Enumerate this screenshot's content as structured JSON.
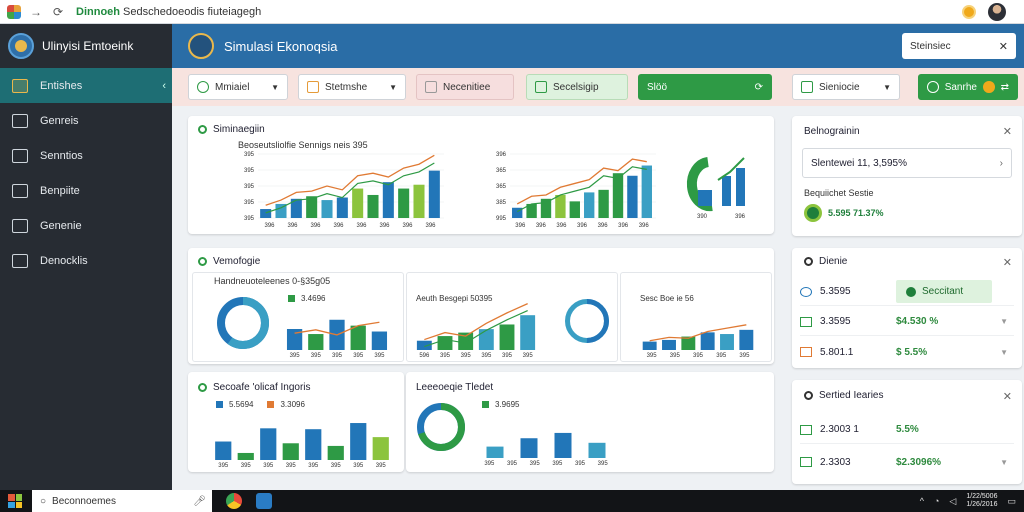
{
  "browser": {
    "url_host": "Dinnoeh",
    "url_rest": " Sedschedoeodis fiuteiagegh",
    "icons": [
      "back-arrow",
      "forward-arrow",
      "reload",
      "extension",
      "profile"
    ]
  },
  "sidebar": {
    "title": "Ulinyisi Emtoeink",
    "items": [
      {
        "label": "Entishes",
        "icon": "puzzle-icon",
        "active": true
      },
      {
        "label": "Genreis",
        "icon": "monitor-icon"
      },
      {
        "label": "Senntios",
        "icon": "folder-icon"
      },
      {
        "label": "Benpiite",
        "icon": "document-icon"
      },
      {
        "label": "Genenie",
        "icon": "user-icon"
      },
      {
        "label": "Denocklis",
        "icon": "settings-icon"
      }
    ]
  },
  "header": {
    "title": "Simulasi Ekonoqsia",
    "search_value": "Steinsiec"
  },
  "toolbar": {
    "items": [
      {
        "label": "Mmiaiel",
        "style": "plain"
      },
      {
        "label": "Stetmshe",
        "style": "plain"
      },
      {
        "label": "Necenitiee",
        "style": "pink"
      },
      {
        "label": "Secelsigip",
        "style": "mint"
      },
      {
        "label": "Slöö",
        "style": "green"
      },
      {
        "label": "Sieniocie",
        "style": "plain"
      },
      {
        "label": "Sanrhe",
        "style": "green"
      }
    ]
  },
  "card1": {
    "title": "Siminaegiin",
    "subtitle": "Beoseutsliolfie Sennigs neis 395",
    "chart_a_yticks": [
      "395",
      "395",
      "395",
      "395",
      "395"
    ],
    "chart_a_xticks": [
      "396",
      "396",
      "396",
      "396",
      "396",
      "396",
      "396",
      "396"
    ],
    "chart_b_yticks": [
      "995",
      "385",
      "365",
      "365",
      "396"
    ],
    "chart_b_xticks": [
      "396",
      "396",
      "396",
      "396",
      "396",
      "396",
      "396"
    ],
    "chart_c_xticks": [
      "390",
      "396"
    ]
  },
  "card2": {
    "title": "Vemofogie",
    "subtitle": "Handneuoteleenes 0-§35g05",
    "legend_a": "3.4696",
    "xticks_a": [
      "395",
      "395",
      "395",
      "395",
      "395"
    ],
    "chart_b_title": "Aeuth Besgepi 50395",
    "xticks_b": [
      "596",
      "395",
      "395",
      "395",
      "395",
      "395"
    ],
    "legend_c": "Sesc Boe ie 56",
    "xticks_c": [
      "395",
      "395",
      "395",
      "395",
      "395"
    ]
  },
  "card3": {
    "title": "Secoafe 'olicaf Ingoris",
    "legend_1": "5.5694",
    "legend_2": "3.3096",
    "xticks": [
      "395",
      "395",
      "395",
      "395",
      "395",
      "395",
      "395",
      "395"
    ]
  },
  "card4": {
    "title": "Leeeoeqie Tledet",
    "legend": "3.9695",
    "xticks": [
      "395",
      "395",
      "395",
      "395",
      "395",
      "395"
    ]
  },
  "panel1": {
    "title": "Belnograinin",
    "metric": "Slentewei 11, 3,595%",
    "label": "Bequiichet Sestie",
    "value": "5.595 71.37%"
  },
  "panel2": {
    "title": "Dienie",
    "rows": [
      {
        "c1": "5.3595",
        "c2": "Seccitant",
        "highlight": true
      },
      {
        "c1": "3.3595",
        "c2": "$4.530 %"
      },
      {
        "c1": "5.801.1",
        "c2": "$ 5.5%"
      }
    ]
  },
  "panel3": {
    "title": "Sertied Iearies",
    "rows": [
      {
        "c1": "2.3003 1",
        "c2": "5.5%"
      },
      {
        "c1": "2.3303",
        "c2": "$2.3096%"
      }
    ]
  },
  "taskbar": {
    "search": "Beconnoemes",
    "clock_time": "1/22/5006",
    "clock_date": "1/26/2016"
  },
  "colors": {
    "sidebar_bg": "#272c33",
    "header_bg": "#2a6da6",
    "active_nav": "#1e6e74",
    "green": "#2e9a45",
    "blue": "#2276b8",
    "teal": "#3a9fc4",
    "lime": "#8cc43d",
    "orange": "#e07a34"
  },
  "chart_data": [
    {
      "type": "bar",
      "series": [
        {
          "values": [
            14,
            22,
            30,
            34,
            28,
            32,
            46,
            36,
            56,
            46,
            52,
            74
          ]
        }
      ],
      "line": [
        20,
        28,
        40,
        42,
        50,
        44,
        66,
        70,
        64,
        78,
        84,
        98
      ]
    },
    {
      "type": "bar",
      "series": [
        {
          "values": [
            16,
            22,
            30,
            36,
            26,
            40,
            44,
            70,
            66,
            82
          ]
        }
      ],
      "line": [
        22,
        34,
        36,
        48,
        54,
        60,
        78,
        74,
        92,
        88
      ]
    },
    {
      "type": "bar",
      "series": [
        {
          "values": [
            50,
            38,
            72,
            58,
            44
          ]
        }
      ],
      "line": [
        40,
        48,
        36,
        58,
        66
      ]
    },
    {
      "type": "bar",
      "series": [
        {
          "values": [
            16,
            24,
            30,
            36,
            44,
            60
          ]
        }
      ],
      "line": [
        18,
        30,
        24,
        46,
        64,
        80
      ]
    },
    {
      "type": "bar",
      "series": [
        {
          "values": [
            20,
            24,
            32,
            42,
            38,
            48
          ]
        }
      ],
      "line": [
        22,
        30,
        28,
        44,
        52,
        60
      ]
    },
    {
      "type": "bar",
      "series": [
        {
          "values": [
            42,
            16,
            72,
            38,
            70,
            32,
            84,
            52
          ]
        }
      ]
    },
    {
      "type": "bar",
      "series": [
        {
          "values": [
            30,
            52,
            66,
            40
          ]
        }
      ]
    }
  ]
}
